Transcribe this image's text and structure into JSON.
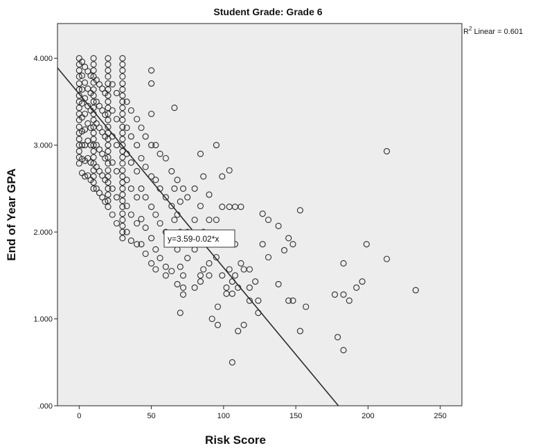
{
  "chart_data": {
    "type": "scatter",
    "title": "Student Grade: Grade 6",
    "xlabel": "Risk Score",
    "ylabel": "End of Year GPA",
    "xlim": [
      -15,
      265
    ],
    "ylim": [
      0,
      4.4
    ],
    "x_ticks": [
      0,
      50,
      100,
      150,
      200,
      250
    ],
    "x_tick_labels": [
      "0",
      "50",
      "100",
      "150",
      "200",
      "250"
    ],
    "y_ticks": [
      0,
      1,
      2,
      3,
      4
    ],
    "y_tick_labels": [
      ".000",
      "1.000",
      "2.000",
      "3.000",
      "4.000"
    ],
    "plot_background": "#ededed",
    "marker": "open-circle",
    "grid": false,
    "legend": "none",
    "fit_line": {
      "intercept": 3.59,
      "slope": -0.02
    },
    "annotations": {
      "equation": "y=3.59-0.02*x",
      "r2_base": "R",
      "r2_sup": "2",
      "r2_text": " Linear = 0.601"
    },
    "points": [
      [
        0,
        4.0
      ],
      [
        0,
        3.93
      ],
      [
        0,
        3.86
      ],
      [
        0,
        3.79
      ],
      [
        0,
        3.71
      ],
      [
        0,
        3.64
      ],
      [
        0,
        3.57
      ],
      [
        0,
        3.5
      ],
      [
        0,
        3.43
      ],
      [
        0,
        3.36
      ],
      [
        0,
        3.29
      ],
      [
        0,
        3.21
      ],
      [
        0,
        3.14
      ],
      [
        0,
        3.07
      ],
      [
        0,
        3.0
      ],
      [
        0,
        2.93
      ],
      [
        0,
        2.86
      ],
      [
        0,
        2.79
      ],
      [
        2,
        3.96
      ],
      [
        2,
        3.8
      ],
      [
        2,
        3.64
      ],
      [
        2,
        3.48
      ],
      [
        2,
        3.32
      ],
      [
        2,
        3.16
      ],
      [
        2,
        3.0
      ],
      [
        2,
        2.84
      ],
      [
        2,
        2.68
      ],
      [
        4,
        3.9
      ],
      [
        4,
        3.72
      ],
      [
        4,
        3.54
      ],
      [
        4,
        3.36
      ],
      [
        4,
        3.18
      ],
      [
        4,
        3.0
      ],
      [
        4,
        2.82
      ],
      [
        4,
        2.64
      ],
      [
        6,
        3.85
      ],
      [
        6,
        3.65
      ],
      [
        6,
        3.45
      ],
      [
        6,
        3.25
      ],
      [
        6,
        3.05
      ],
      [
        6,
        2.85
      ],
      [
        6,
        2.65
      ],
      [
        8,
        3.8
      ],
      [
        8,
        3.6
      ],
      [
        8,
        3.4
      ],
      [
        8,
        3.2
      ],
      [
        8,
        3.0
      ],
      [
        8,
        2.8
      ],
      [
        8,
        2.6
      ],
      [
        10,
        4.0
      ],
      [
        10,
        3.93
      ],
      [
        10,
        3.86
      ],
      [
        10,
        3.79
      ],
      [
        10,
        3.72
      ],
      [
        10,
        3.64
      ],
      [
        10,
        3.57
      ],
      [
        10,
        3.5
      ],
      [
        10,
        3.43
      ],
      [
        10,
        3.36
      ],
      [
        10,
        3.29
      ],
      [
        10,
        3.21
      ],
      [
        10,
        3.14
      ],
      [
        10,
        3.07
      ],
      [
        10,
        3.0
      ],
      [
        10,
        2.93
      ],
      [
        10,
        2.86
      ],
      [
        10,
        2.79
      ],
      [
        10,
        2.71
      ],
      [
        10,
        2.64
      ],
      [
        10,
        2.57
      ],
      [
        10,
        2.5
      ],
      [
        12,
        3.75
      ],
      [
        12,
        3.5
      ],
      [
        12,
        3.25
      ],
      [
        12,
        3.0
      ],
      [
        12,
        2.75
      ],
      [
        12,
        2.5
      ],
      [
        14,
        3.7
      ],
      [
        14,
        3.45
      ],
      [
        14,
        3.2
      ],
      [
        14,
        2.95
      ],
      [
        14,
        2.7
      ],
      [
        14,
        2.45
      ],
      [
        16,
        3.65
      ],
      [
        16,
        3.4
      ],
      [
        16,
        3.15
      ],
      [
        16,
        2.9
      ],
      [
        16,
        2.65
      ],
      [
        16,
        2.4
      ],
      [
        18,
        3.6
      ],
      [
        18,
        3.35
      ],
      [
        18,
        3.1
      ],
      [
        18,
        2.85
      ],
      [
        18,
        2.6
      ],
      [
        18,
        2.35
      ],
      [
        20,
        4.0
      ],
      [
        20,
        3.93
      ],
      [
        20,
        3.86
      ],
      [
        20,
        3.79
      ],
      [
        20,
        3.71
      ],
      [
        20,
        3.64
      ],
      [
        20,
        3.57
      ],
      [
        20,
        3.5
      ],
      [
        20,
        3.43
      ],
      [
        20,
        3.36
      ],
      [
        20,
        3.29
      ],
      [
        20,
        3.21
      ],
      [
        20,
        3.14
      ],
      [
        20,
        3.07
      ],
      [
        20,
        3.0
      ],
      [
        20,
        2.93
      ],
      [
        20,
        2.86
      ],
      [
        20,
        2.79
      ],
      [
        20,
        2.71
      ],
      [
        20,
        2.64
      ],
      [
        20,
        2.57
      ],
      [
        20,
        2.5
      ],
      [
        20,
        2.43
      ],
      [
        20,
        2.36
      ],
      [
        20,
        2.29
      ],
      [
        23,
        3.7
      ],
      [
        23,
        3.4
      ],
      [
        23,
        3.1
      ],
      [
        23,
        2.8
      ],
      [
        23,
        2.5
      ],
      [
        23,
        2.2
      ],
      [
        26,
        3.6
      ],
      [
        26,
        3.3
      ],
      [
        26,
        3.0
      ],
      [
        26,
        2.7
      ],
      [
        26,
        2.4
      ],
      [
        26,
        2.1
      ],
      [
        30,
        4.0
      ],
      [
        30,
        3.93
      ],
      [
        30,
        3.86
      ],
      [
        30,
        3.79
      ],
      [
        30,
        3.71
      ],
      [
        30,
        3.64
      ],
      [
        30,
        3.57
      ],
      [
        30,
        3.5
      ],
      [
        30,
        3.43
      ],
      [
        30,
        3.36
      ],
      [
        30,
        3.29
      ],
      [
        30,
        3.21
      ],
      [
        30,
        3.14
      ],
      [
        30,
        3.07
      ],
      [
        30,
        3.0
      ],
      [
        30,
        2.93
      ],
      [
        30,
        2.86
      ],
      [
        30,
        2.79
      ],
      [
        30,
        2.71
      ],
      [
        30,
        2.64
      ],
      [
        30,
        2.57
      ],
      [
        30,
        2.5
      ],
      [
        30,
        2.43
      ],
      [
        30,
        2.36
      ],
      [
        30,
        2.29
      ],
      [
        30,
        2.21
      ],
      [
        30,
        2.14
      ],
      [
        30,
        2.07
      ],
      [
        30,
        2.0
      ],
      [
        30,
        1.93
      ],
      [
        33,
        3.5
      ],
      [
        33,
        3.2
      ],
      [
        33,
        2.9
      ],
      [
        33,
        2.6
      ],
      [
        33,
        2.3
      ],
      [
        33,
        2.0
      ],
      [
        36,
        3.4
      ],
      [
        36,
        3.1
      ],
      [
        36,
        2.8
      ],
      [
        36,
        2.5
      ],
      [
        36,
        2.2
      ],
      [
        36,
        1.9
      ],
      [
        40,
        3.3
      ],
      [
        40,
        3.0
      ],
      [
        40,
        2.7
      ],
      [
        40,
        2.4
      ],
      [
        40,
        2.1
      ],
      [
        40,
        1.86
      ],
      [
        43,
        3.2
      ],
      [
        43,
        2.85
      ],
      [
        43,
        2.5
      ],
      [
        43,
        2.15
      ],
      [
        43,
        1.86
      ],
      [
        46,
        3.1
      ],
      [
        46,
        2.75
      ],
      [
        46,
        2.4
      ],
      [
        46,
        2.05
      ],
      [
        46,
        1.75
      ],
      [
        50,
        3.86
      ],
      [
        50,
        3.71
      ],
      [
        50,
        3.36
      ],
      [
        50,
        3.0
      ],
      [
        50,
        2.64
      ],
      [
        50,
        2.29
      ],
      [
        50,
        1.93
      ],
      [
        50,
        1.64
      ],
      [
        53,
        3.0
      ],
      [
        53,
        2.6
      ],
      [
        53,
        2.2
      ],
      [
        53,
        1.8
      ],
      [
        53,
        1.57
      ],
      [
        56,
        2.9
      ],
      [
        56,
        2.5
      ],
      [
        56,
        2.1
      ],
      [
        56,
        1.7
      ],
      [
        60,
        2.85
      ],
      [
        60,
        2.4
      ],
      [
        60,
        2.0
      ],
      [
        60,
        1.6
      ],
      [
        60,
        1.5
      ],
      [
        64,
        2.7
      ],
      [
        64,
        2.3
      ],
      [
        64,
        1.9
      ],
      [
        64,
        1.55
      ],
      [
        66,
        3.43
      ],
      [
        66,
        2.5
      ],
      [
        66,
        2.14
      ],
      [
        66,
        1.86
      ],
      [
        68,
        2.6
      ],
      [
        68,
        2.2
      ],
      [
        68,
        1.8
      ],
      [
        68,
        1.4
      ],
      [
        70,
        1.07
      ],
      [
        70,
        2.35
      ],
      [
        70,
        2.0
      ],
      [
        70,
        1.6
      ],
      [
        72,
        1.28
      ],
      [
        72,
        1.5
      ],
      [
        72,
        1.36
      ],
      [
        72,
        2.5
      ],
      [
        72,
        1.93
      ],
      [
        75,
        2.4
      ],
      [
        75,
        2.0
      ],
      [
        75,
        1.7
      ],
      [
        80,
        2.5
      ],
      [
        80,
        2.14
      ],
      [
        80,
        1.8
      ],
      [
        80,
        1.36
      ],
      [
        84,
        2.9
      ],
      [
        84,
        2.3
      ],
      [
        84,
        1.5
      ],
      [
        84,
        1.43
      ],
      [
        86,
        2.64
      ],
      [
        86,
        2.0
      ],
      [
        86,
        1.57
      ],
      [
        90,
        2.43
      ],
      [
        90,
        2.14
      ],
      [
        90,
        1.64
      ],
      [
        90,
        1.5
      ],
      [
        92,
        1.0
      ],
      [
        95,
        3.0
      ],
      [
        95,
        2.14
      ],
      [
        95,
        1.71
      ],
      [
        96,
        1.14
      ],
      [
        96,
        0.93
      ],
      [
        99,
        2.64
      ],
      [
        99,
        2.29
      ],
      [
        99,
        1.86
      ],
      [
        99,
        1.5
      ],
      [
        102,
        1.36
      ],
      [
        102,
        1.29
      ],
      [
        104,
        2.71
      ],
      [
        104,
        2.29
      ],
      [
        104,
        1.57
      ],
      [
        106,
        0.5
      ],
      [
        106,
        1.43
      ],
      [
        106,
        1.29
      ],
      [
        108,
        2.29
      ],
      [
        108,
        1.86
      ],
      [
        108,
        1.5
      ],
      [
        110,
        0.86
      ],
      [
        110,
        1.36
      ],
      [
        112,
        2.29
      ],
      [
        112,
        1.64
      ],
      [
        114,
        0.93
      ],
      [
        114,
        1.57
      ],
      [
        118,
        1.57
      ],
      [
        118,
        1.36
      ],
      [
        118,
        1.21
      ],
      [
        122,
        1.43
      ],
      [
        124,
        1.07
      ],
      [
        124,
        1.21
      ],
      [
        127,
        2.21
      ],
      [
        127,
        1.86
      ],
      [
        131,
        2.14
      ],
      [
        131,
        1.71
      ],
      [
        138,
        2.07
      ],
      [
        138,
        1.4
      ],
      [
        142,
        1.79
      ],
      [
        145,
        1.93
      ],
      [
        145,
        1.21
      ],
      [
        148,
        1.86
      ],
      [
        148,
        1.21
      ],
      [
        153,
        2.25
      ],
      [
        153,
        0.86
      ],
      [
        157,
        1.14
      ],
      [
        177,
        1.28
      ],
      [
        179,
        0.79
      ],
      [
        183,
        1.64
      ],
      [
        183,
        1.28
      ],
      [
        183,
        0.64
      ],
      [
        187,
        1.21
      ],
      [
        192,
        1.36
      ],
      [
        196,
        1.43
      ],
      [
        199,
        1.86
      ],
      [
        213,
        2.93
      ],
      [
        213,
        1.69
      ],
      [
        233,
        1.33
      ]
    ]
  }
}
